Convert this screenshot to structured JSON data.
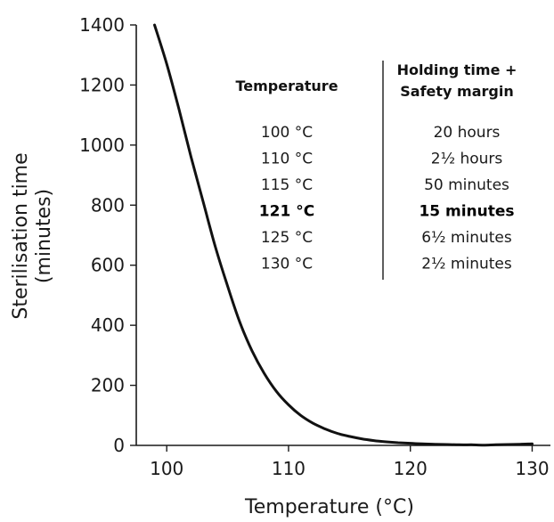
{
  "chart_data": {
    "type": "line",
    "xlabel": "Temperature (°C)",
    "ylabel": "Sterilisation time\n(minutes)",
    "xlim": [
      97.5,
      131.5
    ],
    "ylim": [
      0,
      1400
    ],
    "xticks": [
      100,
      110,
      120,
      130
    ],
    "yticks": [
      0,
      200,
      400,
      600,
      800,
      1000,
      1200,
      1400
    ],
    "grid": false,
    "series": [
      {
        "x": [
          99,
          100,
          101,
          102,
          103,
          104,
          105,
          106,
          107,
          108,
          109,
          110,
          111,
          112,
          113,
          114,
          115,
          116,
          117,
          118,
          119,
          120,
          121,
          122,
          123,
          124,
          125,
          126,
          127,
          128,
          129,
          130
        ],
        "y": [
          1400,
          1270,
          1120,
          960,
          810,
          660,
          530,
          410,
          315,
          240,
          180,
          135,
          100,
          74,
          55,
          40,
          30,
          22,
          16,
          12,
          9,
          7,
          5,
          4,
          3,
          2,
          2,
          1,
          2,
          3,
          4,
          5
        ]
      }
    ]
  },
  "table": {
    "col1_header": "Temperature",
    "col2_header_line1": "Holding time +",
    "col2_header_line2": "Safety margin",
    "rows": [
      {
        "temp": "100 °C",
        "time": "20 hours",
        "bold": false
      },
      {
        "temp": "110 °C",
        "time": "2½ hours",
        "bold": false
      },
      {
        "temp": "115 °C",
        "time": "50 minutes",
        "bold": false
      },
      {
        "temp": "121 °C",
        "time": "15 minutes",
        "bold": true
      },
      {
        "temp": "125 °C",
        "time": "6½ minutes",
        "bold": false
      },
      {
        "temp": "130 °C",
        "time": "2½ minutes",
        "bold": false
      }
    ]
  }
}
